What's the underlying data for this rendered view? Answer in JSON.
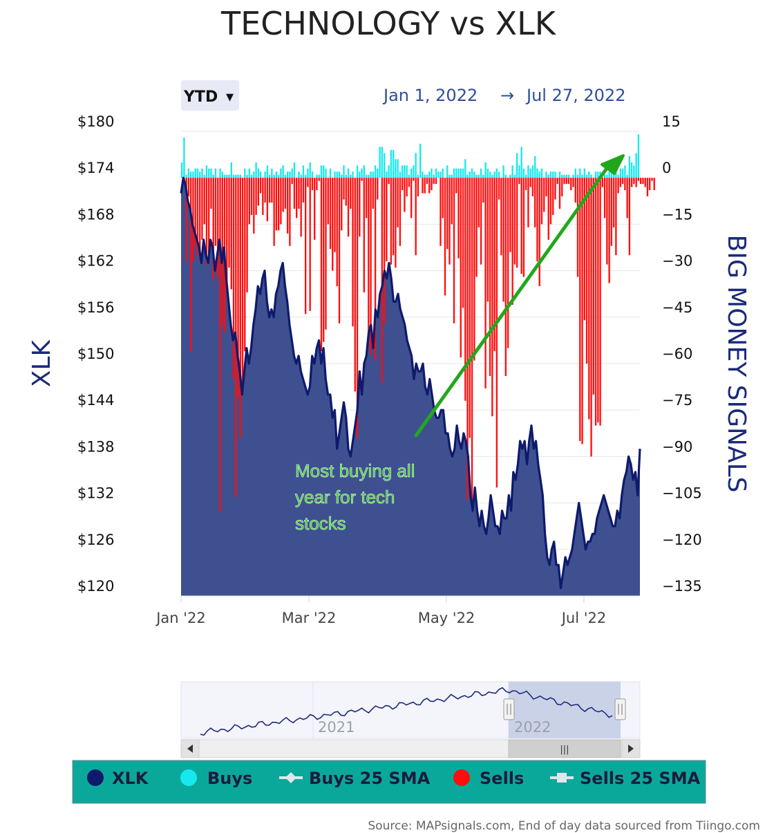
{
  "title": "TECHNOLOGY vs XLK",
  "range_selector": {
    "label": "YTD",
    "arrow": "▾"
  },
  "date_range": {
    "from": "Jan 1, 2022",
    "arrow": "→",
    "to": "Jul 27, 2022"
  },
  "annotation": {
    "lines": [
      "Most buying all",
      "year for tech",
      "stocks"
    ]
  },
  "navigator": {
    "labels": [
      "2021",
      "2022"
    ],
    "scroll_grip": "|||"
  },
  "legend": [
    {
      "label": "XLK",
      "symbol": "circle",
      "color": "#0e1a6b"
    },
    {
      "label": "Buys",
      "symbol": "circle",
      "color": "#17e8ee"
    },
    {
      "label": "Buys 25 SMA",
      "symbol": "line-diamond",
      "color": "#dfe6ec"
    },
    {
      "label": "Sells",
      "symbol": "circle",
      "color": "#ff0d0d"
    },
    {
      "label": "Sells 25 SMA",
      "symbol": "line-square",
      "color": "#dfe6ec"
    }
  ],
  "source": "Source: MAPsignals.com, End of day data sourced from Tiingo.com",
  "colors": {
    "xlk_line": "#0e1a6b",
    "xlk_area": "#3e5090",
    "buys": "#17e8ee",
    "sells": "#ff0d0d",
    "arrow": "#22a71c",
    "legend_bg": "#0aa89b",
    "grid": "#e6e6e6"
  },
  "chart_data": {
    "type": "combo",
    "title": "TECHNOLOGY vs XLK",
    "x_range": [
      "Jan 1, 2022",
      "Jul 27, 2022"
    ],
    "x_ticks": [
      "Jan '22",
      "Mar '22",
      "May '22",
      "Jul '22"
    ],
    "left_axis": {
      "title": "XLK",
      "min": 120,
      "max": 180,
      "ticks": [
        "$180",
        "$174",
        "$168",
        "$162",
        "$156",
        "$150",
        "$144",
        "$138",
        "$132",
        "$126",
        "$120"
      ]
    },
    "right_axis": {
      "title": "BIG MONEY SIGNALS",
      "min": -135,
      "max": 15,
      "ticks": [
        "15",
        "0",
        "−15",
        "−30",
        "−45",
        "−60",
        "−75",
        "−90",
        "−105",
        "−120",
        "−135"
      ]
    },
    "xlk_series": {
      "name": "XLK",
      "values": [
        172,
        174,
        173,
        171,
        170,
        168,
        167,
        166,
        165,
        163,
        166,
        164,
        163,
        166,
        165,
        162,
        164,
        166,
        163,
        165,
        161,
        158,
        155,
        153,
        154,
        151,
        149,
        146,
        149,
        152,
        150,
        152,
        155,
        157,
        160,
        159,
        161,
        162,
        158,
        156,
        157,
        156,
        159,
        160,
        162,
        163,
        160,
        158,
        155,
        153,
        151,
        150,
        151,
        149,
        148,
        147,
        146,
        147,
        151,
        150,
        152,
        153,
        150,
        152,
        148,
        146,
        146,
        143,
        144,
        139,
        141,
        143,
        145,
        143,
        139,
        138,
        140,
        142,
        144,
        149,
        146,
        150,
        151,
        154,
        155,
        152,
        157,
        156,
        159,
        160,
        162,
        161,
        163,
        161,
        158,
        158,
        159,
        157,
        156,
        155,
        153,
        152,
        151,
        148,
        150,
        149,
        149,
        150,
        147,
        146,
        148,
        146,
        144,
        143,
        143,
        144,
        144,
        141,
        141,
        139,
        138,
        139,
        142,
        140,
        139,
        141,
        140,
        138,
        133,
        131,
        134,
        131,
        129,
        131,
        129,
        128,
        130,
        133,
        131,
        129,
        129,
        128,
        131,
        130,
        130,
        133,
        131,
        136,
        135,
        137,
        140,
        139,
        140,
        137,
        140,
        142,
        139,
        140,
        137,
        135,
        133,
        128,
        125,
        124,
        126,
        127,
        124,
        124,
        121,
        123,
        125,
        124,
        125,
        126,
        128,
        130,
        132,
        130,
        128,
        126,
        127,
        127,
        128,
        128,
        130,
        131,
        132,
        133,
        132,
        131,
        130,
        129,
        129,
        131,
        130,
        133,
        135,
        136,
        138,
        137,
        135,
        136,
        133,
        139
      ]
    },
    "signals": {
      "buys": [
        5,
        13,
        1,
        3,
        2,
        2,
        3,
        3,
        2,
        3,
        1,
        4,
        3,
        3,
        1,
        3,
        0,
        3,
        2,
        1,
        1,
        1,
        5,
        1,
        1,
        1,
        1,
        0,
        3,
        1,
        3,
        1,
        2,
        5,
        3,
        2,
        0,
        2,
        4,
        1,
        3,
        1,
        2,
        1,
        3,
        4,
        1,
        2,
        2,
        3,
        5,
        0,
        2,
        1,
        4,
        1,
        3,
        5,
        2,
        0,
        1,
        1,
        4,
        4,
        3,
        0,
        3,
        0,
        2,
        2,
        2,
        1,
        4,
        1,
        3,
        1,
        2,
        0,
        4,
        2,
        3,
        4,
        1,
        1,
        2,
        2,
        4,
        3,
        10,
        10,
        8,
        2,
        4,
        9,
        9,
        6,
        6,
        2,
        4,
        4,
        4,
        1,
        3,
        4,
        8,
        1,
        11,
        2,
        1,
        1,
        2,
        3,
        1,
        3,
        2,
        2,
        3,
        0,
        4,
        1,
        1,
        3,
        3,
        3,
        3,
        3,
        6,
        1,
        2,
        3,
        2,
        1,
        1,
        3,
        1,
        5,
        3,
        2,
        1,
        2,
        3,
        2,
        0,
        4,
        1,
        0,
        1,
        4,
        1,
        8,
        4,
        10,
        3,
        1,
        4,
        3,
        4,
        7,
        3,
        2,
        3,
        0,
        2,
        1,
        2,
        2,
        2,
        0,
        2,
        1,
        1,
        1,
        1,
        0,
        1,
        3,
        1,
        3,
        1,
        3,
        1,
        2,
        1,
        0,
        2,
        2,
        2,
        0,
        1,
        1,
        2,
        4,
        3,
        2,
        1,
        3,
        3,
        4,
        1,
        7,
        5,
        4,
        8,
        14
      ],
      "sells": [
        0,
        -1,
        -27,
        -6,
        -56,
        -27,
        -22,
        -25,
        -26,
        -20,
        -15,
        -28,
        -27,
        -10,
        -33,
        -22,
        -32,
        -108,
        -48,
        -50,
        -36,
        -29,
        -36,
        -65,
        -103,
        -71,
        -84,
        -70,
        -56,
        -37,
        -15,
        -12,
        -18,
        -12,
        -9,
        -5,
        -12,
        -8,
        -14,
        -8,
        -8,
        -22,
        -17,
        -17,
        -15,
        -11,
        -10,
        -18,
        -22,
        -2,
        -10,
        -13,
        -10,
        -19,
        -8,
        -44,
        -3,
        -43,
        -4,
        -20,
        -4,
        -1,
        -56,
        -53,
        -49,
        -15,
        -23,
        -30,
        -24,
        -35,
        -47,
        -17,
        -7,
        -9,
        -19,
        -10,
        -48,
        -69,
        -84,
        -19,
        -1,
        -37,
        -13,
        -54,
        -57,
        -10,
        -59,
        -7,
        0,
        -66,
        -47,
        -27,
        -2,
        -28,
        -25,
        -29,
        -16,
        -22,
        -4,
        -11,
        -6,
        -3,
        -13,
        -1,
        -25,
        -6,
        0,
        -5,
        -5,
        -2,
        -5,
        -4,
        -2,
        -2,
        0,
        -22,
        -13,
        -38,
        -23,
        -28,
        -15,
        -47,
        -5,
        -26,
        -58,
        -42,
        -72,
        -104,
        -84,
        -105,
        -59,
        -32,
        -16,
        -28,
        -8,
        -68,
        -40,
        -64,
        -77,
        -56,
        -100,
        -7,
        -25,
        -40,
        -64,
        -55,
        -24,
        -41,
        -28,
        -29,
        -2,
        -31,
        -32,
        -4,
        -16,
        -3,
        -6,
        -16,
        -27,
        -35,
        -15,
        -11,
        -6,
        -20,
        -15,
        -12,
        -7,
        -2,
        -10,
        -6,
        -2,
        -2,
        -2,
        -4,
        -3,
        -8,
        -32,
        -85,
        -86,
        -46,
        -60,
        -78,
        -90,
        -70,
        -80,
        -79,
        -80,
        -3,
        -13,
        -28,
        -34,
        -22,
        -16,
        -25,
        -5,
        -3,
        -2,
        -4,
        -13,
        -25,
        -3,
        -2,
        -3,
        -1,
        -2,
        -2,
        -3,
        -6,
        -4,
        -1,
        -4
      ]
    },
    "navigator": {
      "type": "line",
      "labels": [
        "2021",
        "2022"
      ],
      "selected": "2022"
    }
  }
}
